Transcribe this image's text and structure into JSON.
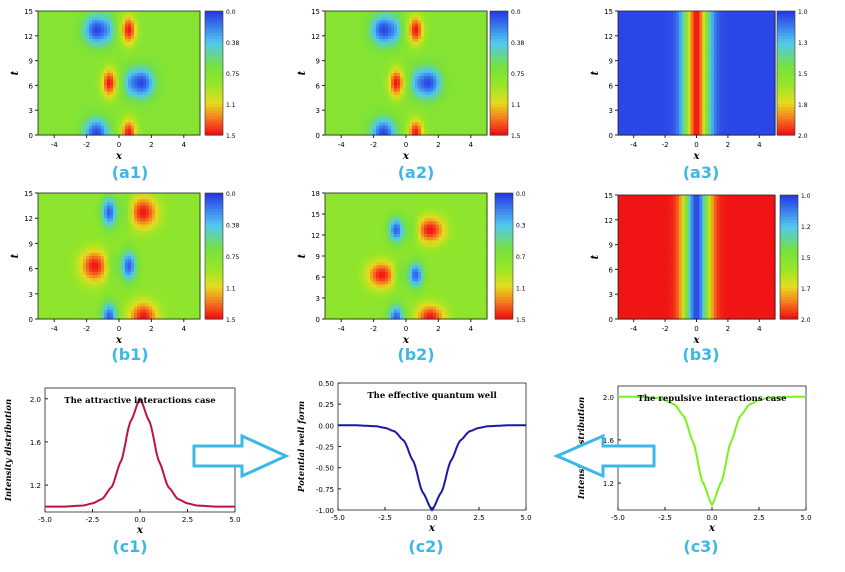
{
  "figure": {
    "labels": [
      "(a1)",
      "(a2)",
      "(a3)",
      "(b1)",
      "(b2)",
      "(b3)",
      "(c1)",
      "(c2)",
      "(c3)"
    ]
  },
  "chart_data": [
    {
      "id": "a1",
      "type": "heatmap",
      "xlabel": "x",
      "ylabel": "t",
      "xticks": [
        "-4",
        "-2",
        "0",
        "2",
        "4"
      ],
      "yticks": [
        "0",
        "3",
        "6",
        "9",
        "12",
        "15"
      ],
      "xlim": [
        -5,
        5
      ],
      "ylim": [
        0,
        15
      ],
      "colorbar": [
        "0.0",
        "0.38",
        "0.75",
        "1.1",
        "1.5"
      ],
      "variant": "a"
    },
    {
      "id": "a2",
      "type": "heatmap",
      "xlabel": "x",
      "ylabel": "t",
      "xticks": [
        "-4",
        "-2",
        "0",
        "2",
        "4"
      ],
      "yticks": [
        "0",
        "3",
        "6",
        "9",
        "12",
        "15"
      ],
      "xlim": [
        -5,
        5
      ],
      "ylim": [
        0,
        15
      ],
      "colorbar": [
        "0.0",
        "0.38",
        "0.75",
        "1.1",
        "1.5"
      ],
      "variant": "a"
    },
    {
      "id": "a3",
      "type": "heatmap",
      "xlabel": "x",
      "ylabel": "t",
      "xticks": [
        "-4",
        "-2",
        "0",
        "2",
        "4"
      ],
      "yticks": [
        "0",
        "3",
        "6",
        "9",
        "12",
        "15"
      ],
      "xlim": [
        -5,
        5
      ],
      "ylim": [
        0,
        15
      ],
      "colorbar": [
        "1.0",
        "1.3",
        "1.5",
        "1.8",
        "2.0"
      ],
      "variant": "bright"
    },
    {
      "id": "b1",
      "type": "heatmap",
      "xlabel": "x",
      "ylabel": "t",
      "xticks": [
        "-4",
        "-2",
        "0",
        "2",
        "4"
      ],
      "yticks": [
        "0",
        "3",
        "6",
        "9",
        "12",
        "15"
      ],
      "xlim": [
        -5,
        5
      ],
      "ylim": [
        0,
        15
      ],
      "colorbar": [
        "0.0",
        "0.38",
        "0.75",
        "1.1",
        "1.5"
      ],
      "variant": "b"
    },
    {
      "id": "b2",
      "type": "heatmap",
      "xlabel": "x",
      "ylabel": "t",
      "xticks": [
        "-4",
        "-2",
        "0",
        "2",
        "4"
      ],
      "yticks": [
        "0",
        "3",
        "6",
        "9",
        "12",
        "15",
        "18"
      ],
      "xlim": [
        -5,
        5
      ],
      "ylim": [
        0,
        18
      ],
      "colorbar": [
        "0.0",
        "0.38",
        "0.75",
        "1.1",
        "1.5"
      ],
      "variant": "b2"
    },
    {
      "id": "b3",
      "type": "heatmap",
      "xlabel": "x",
      "ylabel": "t",
      "xticks": [
        "-4",
        "-2",
        "0",
        "2",
        "4"
      ],
      "yticks": [
        "0",
        "3",
        "6",
        "9",
        "12",
        "15"
      ],
      "xlim": [
        -5,
        5
      ],
      "ylim": [
        0,
        15
      ],
      "colorbar": [
        "1.00",
        "1.2",
        "1.5",
        "1.7",
        "2.0"
      ],
      "variant": "dark"
    },
    {
      "id": "c1",
      "type": "line",
      "title": "The attractive interactions case",
      "xlabel": "x",
      "ylabel": "Intensity distribution",
      "xlim": [
        -5,
        5
      ],
      "ylim": [
        0.95,
        2.1
      ],
      "xticks": [
        "-5.0",
        "-2.5",
        "0.0",
        "2.5",
        "5.0"
      ],
      "yticks": [
        "1.2",
        "1.6",
        "2.0"
      ],
      "color": "#c0143c",
      "x": [
        -5,
        -4,
        -3,
        -2.5,
        -2,
        -1.5,
        -1,
        -0.5,
        0,
        0.5,
        1,
        1.5,
        2,
        2.5,
        3,
        4,
        5
      ],
      "y": [
        1.0,
        1.0,
        1.01,
        1.03,
        1.07,
        1.18,
        1.42,
        1.79,
        2.0,
        1.79,
        1.42,
        1.18,
        1.07,
        1.03,
        1.01,
        1.0,
        1.0
      ]
    },
    {
      "id": "c2",
      "type": "line",
      "title": "The effective quantum well",
      "xlabel": "x",
      "ylabel": "Potential well form",
      "xlim": [
        -5,
        5
      ],
      "ylim": [
        -1.0,
        0.5
      ],
      "xticks": [
        "-5.0",
        "-2.5",
        "0.0",
        "2.5",
        "5.0"
      ],
      "yticks": [
        "-1.00",
        "-0.75",
        "-0.50",
        "-0.25",
        "0.00",
        "0.25",
        "0.50"
      ],
      "color": "#1a1aa8",
      "x": [
        -5,
        -4,
        -3,
        -2.5,
        -2,
        -1.5,
        -1,
        -0.5,
        0,
        0.5,
        1,
        1.5,
        2,
        2.5,
        3,
        4,
        5
      ],
      "y": [
        0,
        0,
        -0.01,
        -0.03,
        -0.07,
        -0.18,
        -0.42,
        -0.79,
        -1.0,
        -0.79,
        -0.42,
        -0.18,
        -0.07,
        -0.03,
        -0.01,
        0,
        0
      ]
    },
    {
      "id": "c3",
      "type": "line",
      "title": "The repulsive interactions case",
      "xlabel": "x",
      "ylabel": "Intensity distribution",
      "xlim": [
        -5,
        5
      ],
      "ylim": [
        0.95,
        2.1
      ],
      "xticks": [
        "-5.0",
        "-2.5",
        "0.0",
        "2.5",
        "5.0"
      ],
      "yticks": [
        "1.2",
        "1.6",
        "2.0"
      ],
      "color": "#7cf21c",
      "x": [
        -5,
        -4,
        -3,
        -2.5,
        -2,
        -1.5,
        -1,
        -0.5,
        0,
        0.5,
        1,
        1.5,
        2,
        2.5,
        3,
        4,
        5
      ],
      "y": [
        2.0,
        2.0,
        1.99,
        1.97,
        1.93,
        1.82,
        1.58,
        1.21,
        1.0,
        1.21,
        1.58,
        1.82,
        1.93,
        1.97,
        1.99,
        2.0,
        2.0
      ]
    }
  ],
  "colors": {
    "label": "#3cb8e8",
    "arrow_stroke": "#3cb8e8"
  }
}
